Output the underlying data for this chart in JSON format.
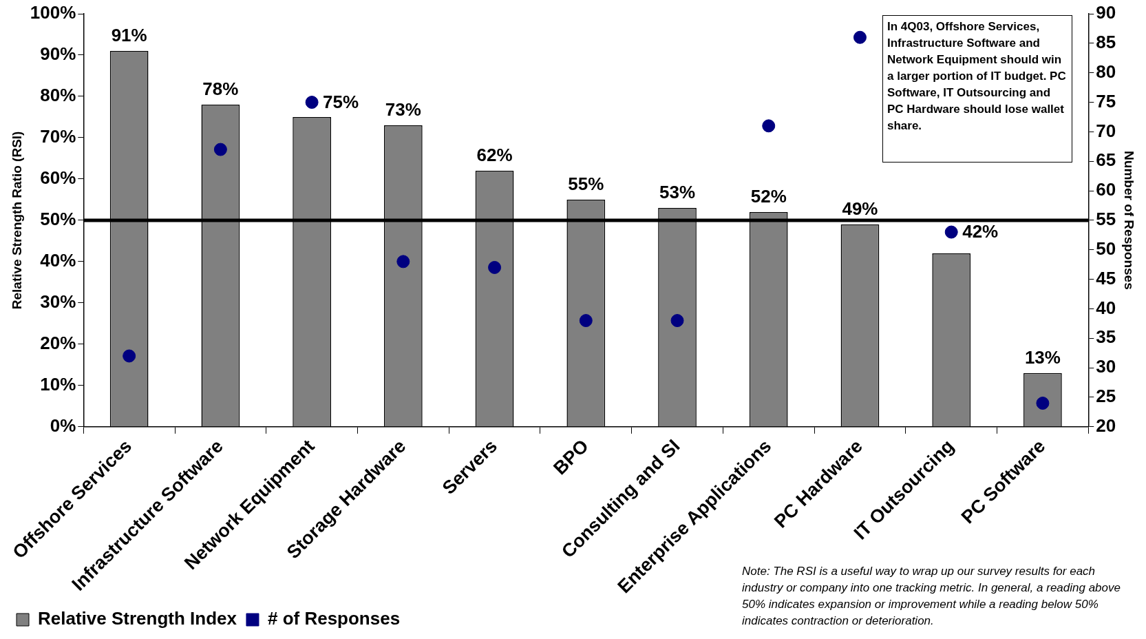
{
  "chart_data": {
    "type": "bar",
    "ylabel": "Relative Strength Ratio (RSI)",
    "y2label": "Number of Responses",
    "categories": [
      "Offshore Services",
      "Infrastructure Software",
      "Network Equipment",
      "Storage Hardware",
      "Servers",
      "BPO",
      "Consulting and SI",
      "Enterprise Applications",
      "PC Hardware",
      "IT Outsourcing",
      "PC Software"
    ],
    "series": [
      {
        "name": "Relative Strength Index",
        "color": "#808080",
        "values": [
          91,
          78,
          75,
          73,
          62,
          55,
          53,
          52,
          49,
          42,
          13
        ],
        "value_labels": [
          "91%",
          "78%",
          "75%",
          "73%",
          "62%",
          "55%",
          "53%",
          "52%",
          "49%",
          "42%",
          "13%"
        ]
      },
      {
        "name": "# of Responses",
        "type": "scatter",
        "axis": "y2",
        "color": "#000080",
        "x": [
          "Offshore Services",
          "Infrastructure Software",
          "Network Equipment",
          "Storage Hardware",
          "Servers",
          "BPO",
          "Consulting and SI",
          "Enterprise Applications",
          "PC Hardware",
          "IT Outsourcing",
          "PC Software"
        ],
        "values": [
          32,
          67,
          75,
          48,
          47,
          38,
          38,
          71,
          86,
          53,
          24
        ]
      }
    ],
    "ylim": [
      0,
      100
    ],
    "yticks": [
      {
        "value": 0,
        "label": "0%"
      },
      {
        "value": 10,
        "label": "10%"
      },
      {
        "value": 20,
        "label": "20%"
      },
      {
        "value": 30,
        "label": "30%"
      },
      {
        "value": 40,
        "label": "40%"
      },
      {
        "value": 50,
        "label": "50%"
      },
      {
        "value": 60,
        "label": "60%"
      },
      {
        "value": 70,
        "label": "70%"
      },
      {
        "value": 80,
        "label": "80%"
      },
      {
        "value": 90,
        "label": "90%"
      },
      {
        "value": 100,
        "label": "100%"
      }
    ],
    "y2lim": [
      20,
      90
    ],
    "y2ticks": [
      20,
      25,
      30,
      35,
      40,
      45,
      50,
      55,
      60,
      65,
      70,
      75,
      80,
      85,
      90
    ],
    "ref_lines": [
      {
        "axis": "y",
        "value": 50,
        "color": "#000000"
      }
    ],
    "marker": "circle",
    "legend": "bottom",
    "grid": false,
    "annotations": [
      "In 4Q03, Offshore Services, Infrastructure Software and Network Equipment should win a larger portion of IT budget.  PC Software, IT Outsourcing and PC Hardware should lose wallet share.",
      "Note: The RSI is a useful way to wrap up our survey results for each industry or company into one tracking metric.  In general, a reading above 50% indicates expansion or improvement while a reading below 50% indicates contraction or deterioration."
    ]
  }
}
